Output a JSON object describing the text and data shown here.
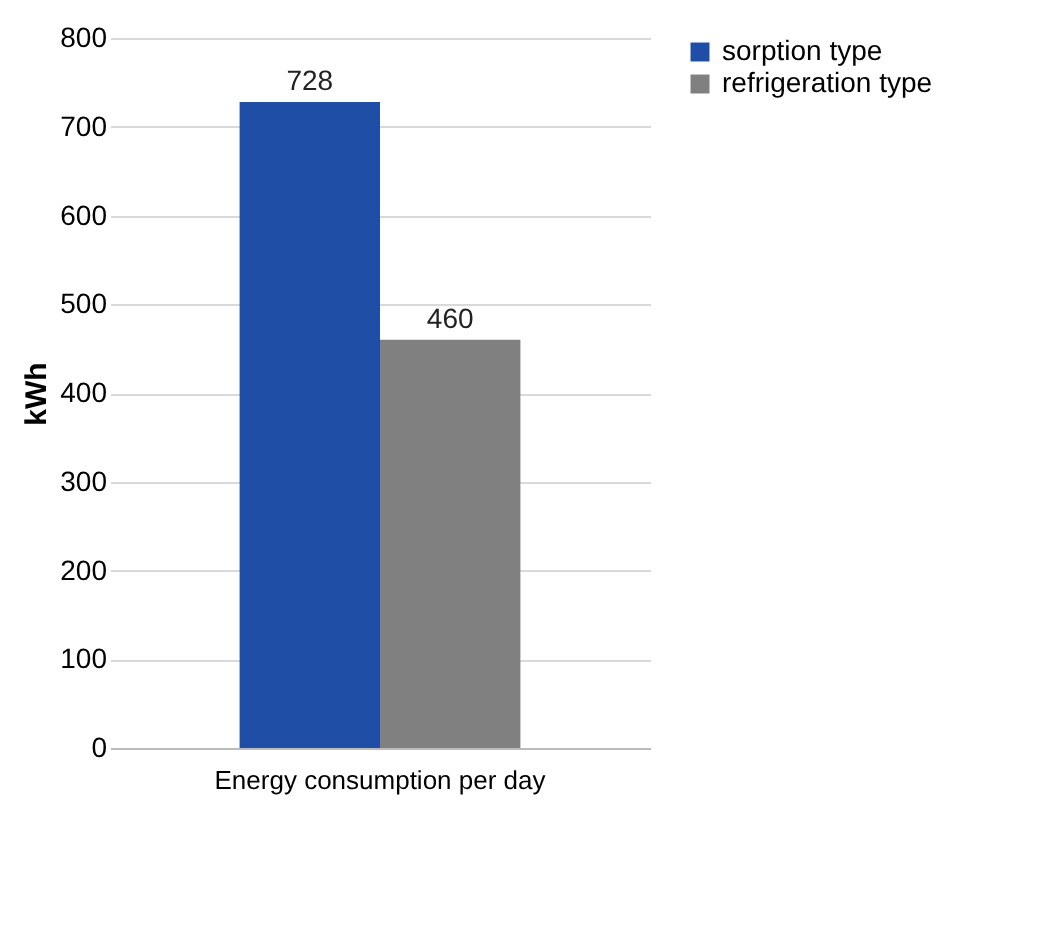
{
  "chart_data": {
    "type": "bar",
    "ylabel": "kWh",
    "categories": [
      "Energy consumption per day"
    ],
    "series": [
      {
        "name": "sorption type",
        "color": "#1f4ea6",
        "values": [
          728
        ]
      },
      {
        "name": "refrigeration type",
        "color": "#808080",
        "values": [
          460
        ]
      }
    ],
    "ylim": [
      0,
      800
    ],
    "yticks": [
      0,
      100,
      200,
      300,
      400,
      500,
      600,
      700,
      800
    ],
    "grid": "y",
    "legend": "right",
    "data_labels": true
  }
}
